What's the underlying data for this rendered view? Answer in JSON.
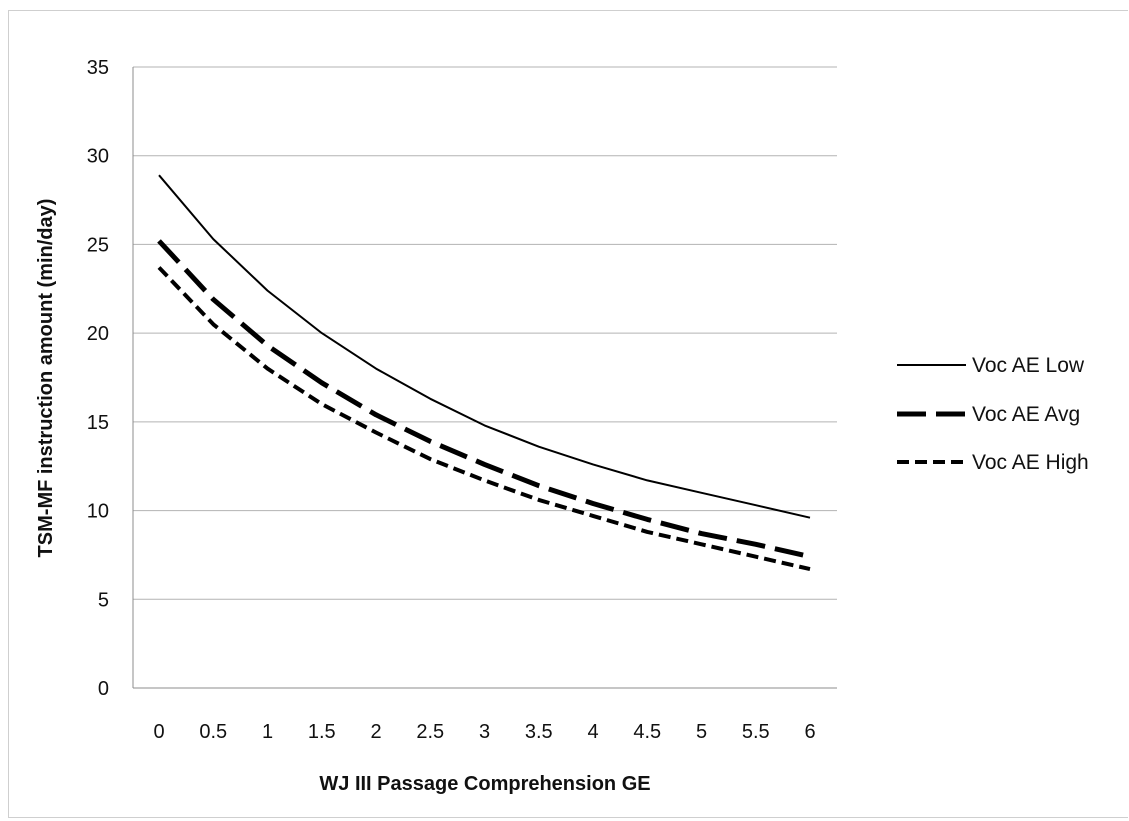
{
  "chart_data": {
    "type": "line",
    "title": "",
    "xlabel": "WJ III Passage Comprehension GE",
    "ylabel": "TSM-MF instruction amount (min/day)",
    "x": [
      0,
      0.5,
      1,
      1.5,
      2,
      2.5,
      3,
      3.5,
      4,
      4.5,
      5,
      5.5,
      6
    ],
    "x_tick_labels": [
      "0",
      "0.5",
      "1",
      "1.5",
      "2",
      "2.5",
      "3",
      "3.5",
      "4",
      "4.5",
      "5",
      "5.5",
      "6"
    ],
    "y_ticks": [
      0,
      5,
      10,
      15,
      20,
      25,
      30,
      35
    ],
    "ylim": [
      0,
      35
    ],
    "grid": "horizontal",
    "legend_position": "right",
    "series": [
      {
        "name": "Voc AE Low",
        "values": [
          28.9,
          25.3,
          22.4,
          20.0,
          18.0,
          16.3,
          14.8,
          13.6,
          12.6,
          11.7,
          11.0,
          10.3,
          9.6
        ],
        "line_style": "solid",
        "color": "#000000"
      },
      {
        "name": "Voc AE Avg",
        "values": [
          25.2,
          21.9,
          19.3,
          17.2,
          15.4,
          13.9,
          12.6,
          11.4,
          10.4,
          9.5,
          8.7,
          8.1,
          7.4
        ],
        "line_style": "long-dash",
        "color": "#000000"
      },
      {
        "name": "Voc AE High",
        "values": [
          23.7,
          20.5,
          18.0,
          16.0,
          14.4,
          12.9,
          11.7,
          10.6,
          9.7,
          8.8,
          8.1,
          7.4,
          6.7
        ],
        "line_style": "short-dash",
        "color": "#000000"
      }
    ]
  }
}
